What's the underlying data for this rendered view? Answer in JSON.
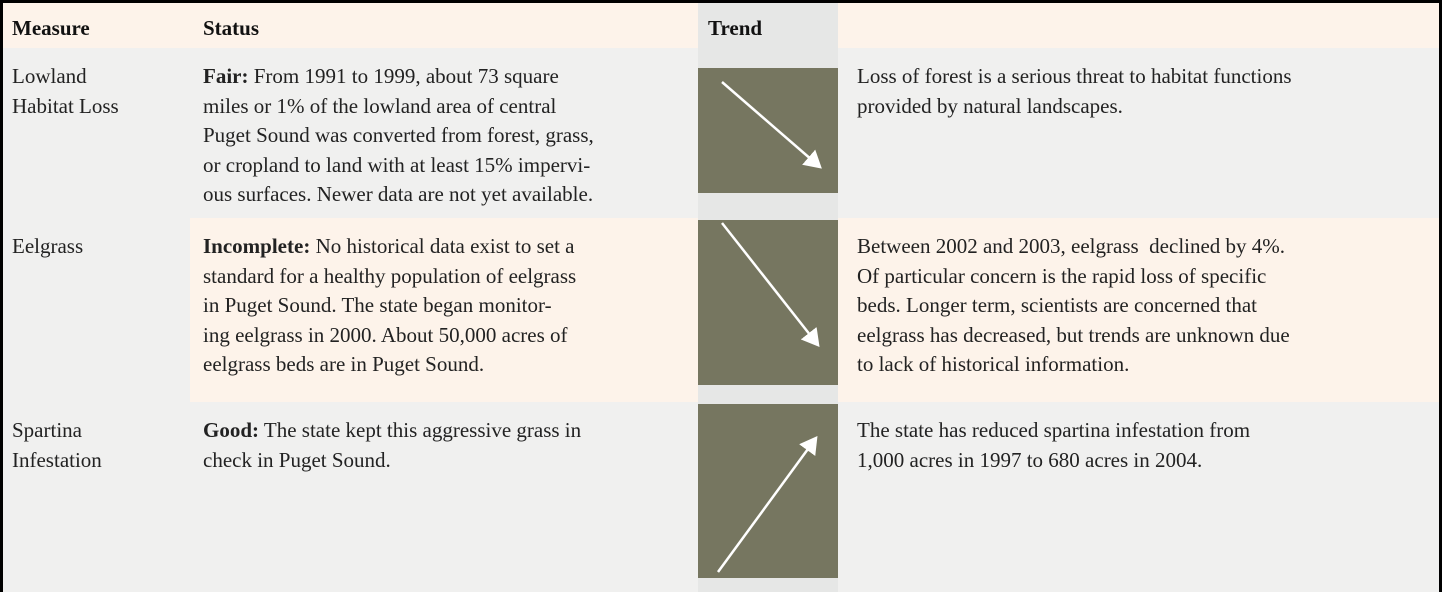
{
  "table": {
    "header": [
      "Measure",
      "Status",
      "Trend"
    ],
    "rows": [
      {
        "measure": [
          "Lowland",
          "Habitat Loss"
        ],
        "status": {
          "label": "Fair:",
          "lines": [
            "From 1991 to 1999, about 73 square",
            "miles or 1% of the lowland area of central",
            "Puget Sound was converted from forest, grass,",
            "or cropland to land with at least 15% impervi-",
            "ous surfaces. Newer data are not yet available."
          ]
        },
        "description": [
          "Loss of forest is a serious threat to habitat functions",
          "provided by natural landscapes."
        ]
      },
      {
        "measure": [
          "Eelgrass"
        ],
        "status": {
          "label": "Incomplete:",
          "lines": [
            "No historical data exist to set a",
            "standard for a healthy population of eelgrass",
            "in Puget Sound. The state began monitor-",
            "ing eelgrass in 2000. About 50,000 acres of",
            "eelgrass beds are in Puget Sound."
          ]
        },
        "description": [
          "Between 2002 and 2003, eelgrass  declined by 4%.",
          "Of particular concern is the rapid loss of specific",
          "beds. Longer term, scientists are concerned that",
          "eelgrass has decreased, but trends are unknown due",
          "to lack of historical information."
        ]
      },
      {
        "measure": [
          "Spartina",
          "Infestation"
        ],
        "status": {
          "label": "Good:",
          "lines": [
            "The state kept this aggressive grass in",
            "check in Puget Sound."
          ]
        },
        "description": [
          "The state has reduced spartina infestation from",
          "1,000 acres in 1997 to 680 acres in 2004."
        ]
      }
    ]
  }
}
